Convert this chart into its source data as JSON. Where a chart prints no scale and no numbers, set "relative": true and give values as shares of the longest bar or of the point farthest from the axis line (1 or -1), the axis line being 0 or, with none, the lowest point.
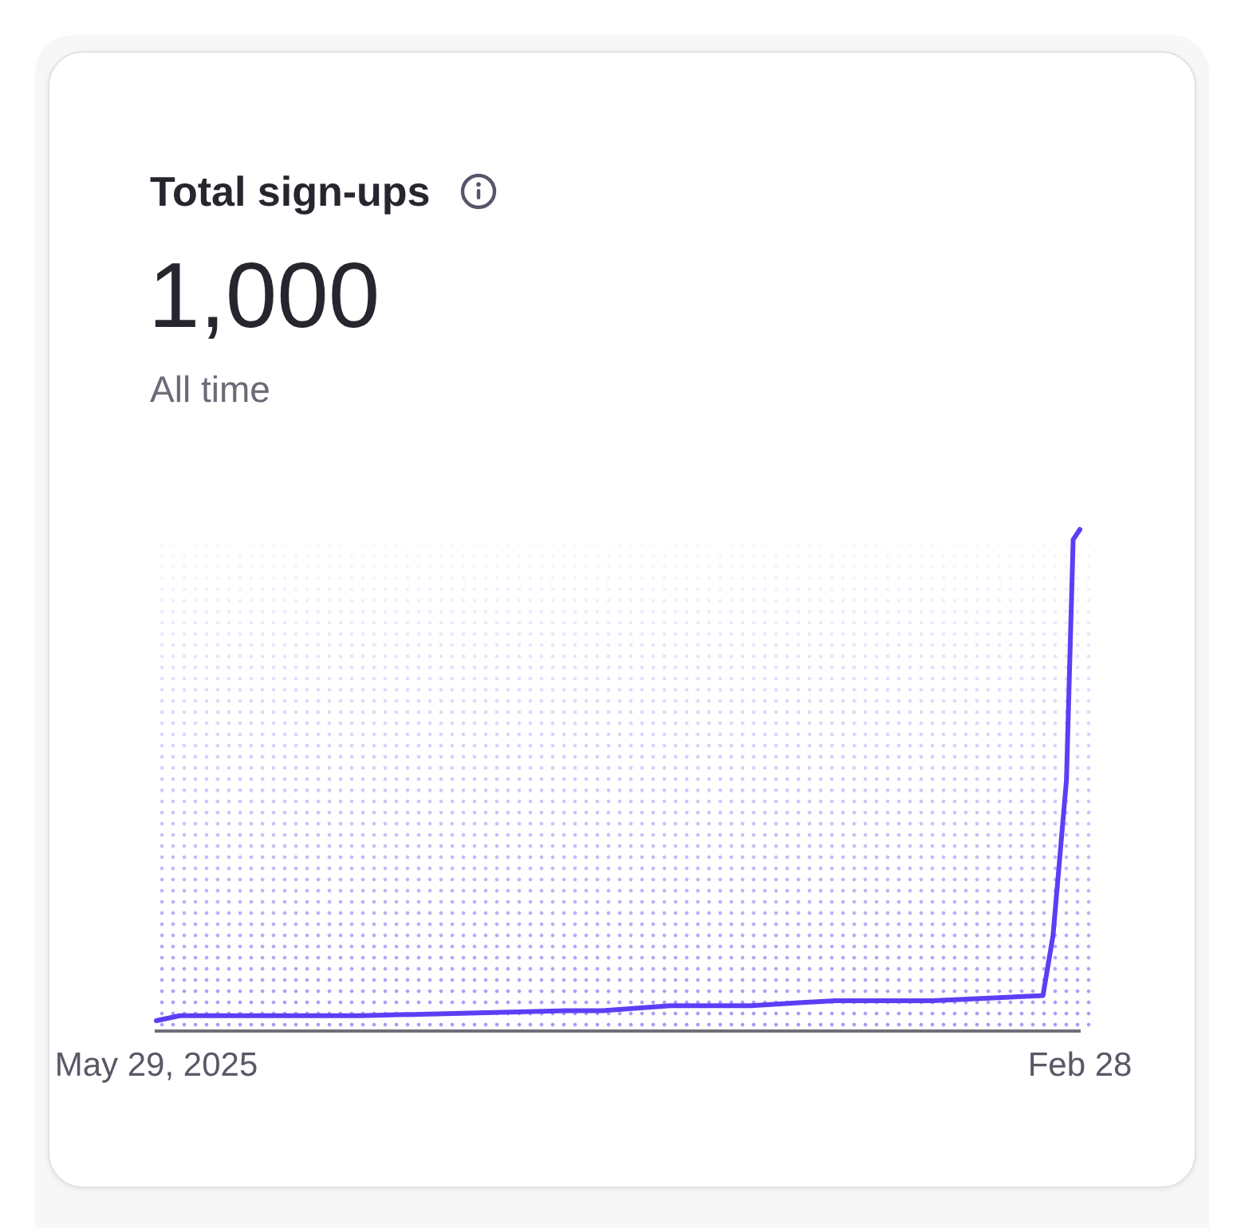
{
  "chart_data": {
    "type": "line",
    "title": "Total sign-ups",
    "subtitle": "All time",
    "annotations": [
      "1,000"
    ],
    "relative": true,
    "marker": "none",
    "line_style": "solid",
    "x": [
      "2025-05-29",
      "2025-06-05",
      "2025-06-26",
      "2025-07-29",
      "2025-09-28",
      "2025-10-09",
      "2025-10-29",
      "2025-11-22",
      "2025-12-17",
      "2026-01-15",
      "2026-02-17",
      "2026-02-20",
      "2026-02-24",
      "2026-02-26",
      "2026-02-28"
    ],
    "series": [
      {
        "color": "#5b3ff5",
        "values": [
          0.02,
          0.03,
          0.03,
          0.03,
          0.04,
          0.04,
          0.05,
          0.05,
          0.06,
          0.06,
          0.07,
          0.19,
          0.5,
          0.98,
          1
        ]
      }
    ],
    "xlim": [
      "2025-05-29",
      "2026-02-28"
    ],
    "xticks": [
      {
        "value": "2025-05-29",
        "label": "May 29, 2025"
      },
      {
        "value": "2026-02-28",
        "label": "Feb 28"
      }
    ]
  }
}
